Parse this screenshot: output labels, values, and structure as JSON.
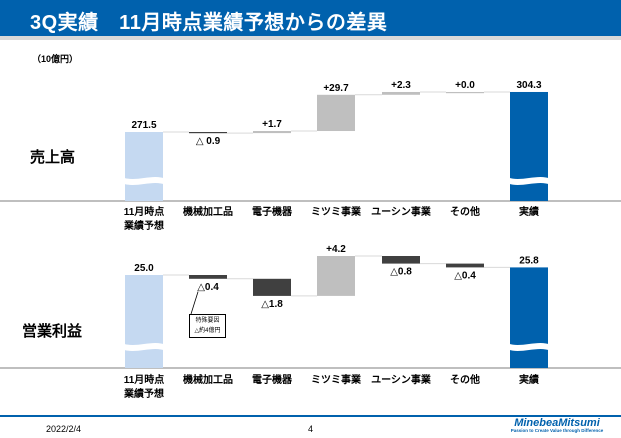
{
  "header": {
    "title": "3Q実績　11月時点業績予想からの差異"
  },
  "unit_label": "（10億円）",
  "categories": [
    "11月時点\n業績予想",
    "機械加工品",
    "電子機器",
    "ミツミ事業",
    "ユーシン事業",
    "その他",
    "実績"
  ],
  "colors": {
    "forecast": "#c5d9f1",
    "actual": "#0061ad",
    "increase": "#bfbfbf",
    "decrease": "#404040",
    "header": "#0061ad"
  },
  "chart_data": [
    {
      "type": "waterfall",
      "row_label": "売上高",
      "categories": [
        "11月時点業績予想",
        "機械加工品",
        "電子機器",
        "ミツミ事業",
        "ユーシン事業",
        "その他",
        "実績"
      ],
      "start": 271.5,
      "deltas": [
        -0.9,
        1.7,
        29.7,
        2.3,
        0.0
      ],
      "end": 304.3,
      "data_labels": [
        "271.5",
        "△ 0.9",
        "+1.7",
        "+29.7",
        "+2.3",
        "+0.0",
        "304.3"
      ],
      "axis_break": true
    },
    {
      "type": "waterfall",
      "row_label": "営業利益",
      "categories": [
        "11月時点業績予想",
        "機械加工品",
        "電子機器",
        "ミツミ事業",
        "ユーシン事業",
        "その他",
        "実績"
      ],
      "start": 25.0,
      "deltas": [
        -0.4,
        -1.8,
        4.2,
        -0.8,
        -0.4
      ],
      "end": 25.8,
      "data_labels": [
        "25.0",
        "△0.4",
        "△1.8",
        "+4.2",
        "△0.8",
        "△0.4",
        "25.8"
      ],
      "axis_break": true,
      "annotation": {
        "category": "機械加工品",
        "lines": [
          "特殊要因",
          "△約4億円"
        ]
      }
    }
  ],
  "footer": {
    "date": "2022/2/4",
    "page": "4",
    "logo": "MinebeaMitsumi",
    "tagline": "Passion to Create Value through Difference"
  }
}
